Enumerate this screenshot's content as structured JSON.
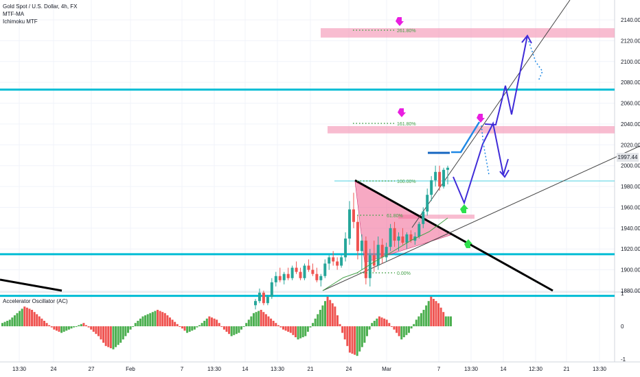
{
  "header": {
    "symbol": "Gold Spot / U.S. Dollar, 4h, FX",
    "indicator_1": "MTF-MA",
    "indicator_2": "Ichimoku MTF"
  },
  "oscillator": {
    "title": "Accelerator Oscillator (AC)",
    "scale_labels": [
      "1",
      "0",
      "-1"
    ]
  },
  "last_price": "1997.44",
  "fib_labels": {
    "f261": "261.80%",
    "f161": "161.80%",
    "f100": "100.00%",
    "f61": "61.80%",
    "f0": "0.00%"
  },
  "colors": {
    "up": "#26a69a",
    "down": "#ef5350",
    "osc_up": "#4caf50",
    "osc_down": "#ef5350",
    "level": "#00bcd4",
    "zone": "#f48fb1",
    "projection": "#3f2bd8",
    "signal_down": "#e91ee0",
    "signal_up": "#2ee04c"
  },
  "chart_data": {
    "type": "candlestick",
    "price_axis": {
      "range": [
        1865,
        2150
      ],
      "ticks": [
        2140,
        2120,
        2100,
        2080,
        2060,
        2040,
        2020,
        2000,
        1980,
        1960,
        1940,
        1920,
        1900,
        1880
      ]
    },
    "time_axis": {
      "ticks": [
        "13:30",
        "24",
        "27",
        "Feb",
        "7",
        "13:30",
        "14",
        "13:30",
        "21",
        "24",
        "Mar",
        "7",
        "13:30",
        "14",
        "12:30",
        "21",
        "13:30"
      ]
    },
    "levels": [
      2073,
      1915,
      1875
    ],
    "zones": [
      [
        2123,
        2132
      ],
      [
        2031,
        2038
      ],
      [
        1949,
        1953
      ],
      [
        1913,
        1917
      ]
    ],
    "candles": [
      {
        "o": 1866,
        "h": 1872,
        "l": 1862,
        "c": 1870
      },
      {
        "o": 1870,
        "h": 1882,
        "l": 1868,
        "c": 1878
      },
      {
        "o": 1878,
        "h": 1880,
        "l": 1866,
        "c": 1868
      },
      {
        "o": 1868,
        "h": 1876,
        "l": 1866,
        "c": 1874
      },
      {
        "o": 1874,
        "h": 1892,
        "l": 1872,
        "c": 1888
      },
      {
        "o": 1888,
        "h": 1898,
        "l": 1884,
        "c": 1894
      },
      {
        "o": 1894,
        "h": 1902,
        "l": 1888,
        "c": 1890
      },
      {
        "o": 1890,
        "h": 1898,
        "l": 1886,
        "c": 1896
      },
      {
        "o": 1896,
        "h": 1902,
        "l": 1890,
        "c": 1892
      },
      {
        "o": 1892,
        "h": 1904,
        "l": 1890,
        "c": 1902
      },
      {
        "o": 1902,
        "h": 1908,
        "l": 1896,
        "c": 1898
      },
      {
        "o": 1898,
        "h": 1902,
        "l": 1890,
        "c": 1892
      },
      {
        "o": 1892,
        "h": 1906,
        "l": 1890,
        "c": 1904
      },
      {
        "o": 1904,
        "h": 1910,
        "l": 1898,
        "c": 1900
      },
      {
        "o": 1900,
        "h": 1906,
        "l": 1894,
        "c": 1896
      },
      {
        "o": 1896,
        "h": 1902,
        "l": 1888,
        "c": 1890
      },
      {
        "o": 1890,
        "h": 1896,
        "l": 1884,
        "c": 1894
      },
      {
        "o": 1894,
        "h": 1910,
        "l": 1892,
        "c": 1906
      },
      {
        "o": 1906,
        "h": 1914,
        "l": 1900,
        "c": 1912
      },
      {
        "o": 1912,
        "h": 1918,
        "l": 1904,
        "c": 1908
      },
      {
        "o": 1908,
        "h": 1912,
        "l": 1900,
        "c": 1904
      },
      {
        "o": 1904,
        "h": 1914,
        "l": 1902,
        "c": 1912
      },
      {
        "o": 1912,
        "h": 1936,
        "l": 1908,
        "c": 1930
      },
      {
        "o": 1930,
        "h": 1966,
        "l": 1924,
        "c": 1958
      },
      {
        "o": 1958,
        "h": 1974,
        "l": 1940,
        "c": 1946
      },
      {
        "o": 1946,
        "h": 1952,
        "l": 1910,
        "c": 1918
      },
      {
        "o": 1918,
        "h": 1934,
        "l": 1900,
        "c": 1928
      },
      {
        "o": 1928,
        "h": 1932,
        "l": 1886,
        "c": 1892
      },
      {
        "o": 1892,
        "h": 1920,
        "l": 1884,
        "c": 1914
      },
      {
        "o": 1914,
        "h": 1928,
        "l": 1898,
        "c": 1904
      },
      {
        "o": 1904,
        "h": 1932,
        "l": 1900,
        "c": 1924
      },
      {
        "o": 1924,
        "h": 1930,
        "l": 1906,
        "c": 1912
      },
      {
        "o": 1912,
        "h": 1926,
        "l": 1908,
        "c": 1922
      },
      {
        "o": 1922,
        "h": 1944,
        "l": 1918,
        "c": 1940
      },
      {
        "o": 1940,
        "h": 1946,
        "l": 1922,
        "c": 1928
      },
      {
        "o": 1928,
        "h": 1936,
        "l": 1918,
        "c": 1932
      },
      {
        "o": 1932,
        "h": 1940,
        "l": 1924,
        "c": 1926
      },
      {
        "o": 1926,
        "h": 1936,
        "l": 1920,
        "c": 1934
      },
      {
        "o": 1934,
        "h": 1938,
        "l": 1926,
        "c": 1928
      },
      {
        "o": 1928,
        "h": 1936,
        "l": 1924,
        "c": 1932
      },
      {
        "o": 1932,
        "h": 1946,
        "l": 1930,
        "c": 1944
      },
      {
        "o": 1944,
        "h": 1960,
        "l": 1940,
        "c": 1956
      },
      {
        "o": 1956,
        "h": 1978,
        "l": 1952,
        "c": 1972
      },
      {
        "o": 1972,
        "h": 1990,
        "l": 1966,
        "c": 1986
      },
      {
        "o": 1986,
        "h": 2000,
        "l": 1980,
        "c": 1994
      },
      {
        "o": 1994,
        "h": 2000,
        "l": 1976,
        "c": 1980
      },
      {
        "o": 1980,
        "h": 1998,
        "l": 1978,
        "c": 1996
      },
      {
        "o": 1996,
        "h": 2000,
        "l": 1982,
        "c": 1998
      }
    ],
    "oscillator_values": [
      0.1,
      0.2,
      0.4,
      0.6,
      0.5,
      0.3,
      0.1,
      -0.1,
      -0.2,
      -0.1,
      0.0,
      0.1,
      -0.1,
      -0.3,
      -0.6,
      -0.7,
      -0.5,
      -0.2,
      0.1,
      0.3,
      0.4,
      0.5,
      0.4,
      0.2,
      0.0,
      -0.2,
      -0.1,
      0.1,
      0.3,
      0.2,
      -0.1,
      -0.3,
      -0.2,
      0.1,
      0.4,
      0.5,
      0.3,
      0.1,
      -0.1,
      -0.2,
      -0.4,
      -0.3,
      0.1,
      0.5,
      0.9,
      0.6,
      -0.2,
      -0.8,
      -0.9,
      -0.5,
      0.1,
      0.3,
      0.2,
      -0.1,
      -0.4,
      -0.2,
      0.2,
      0.5,
      0.9,
      0.7,
      0.3
    ]
  }
}
